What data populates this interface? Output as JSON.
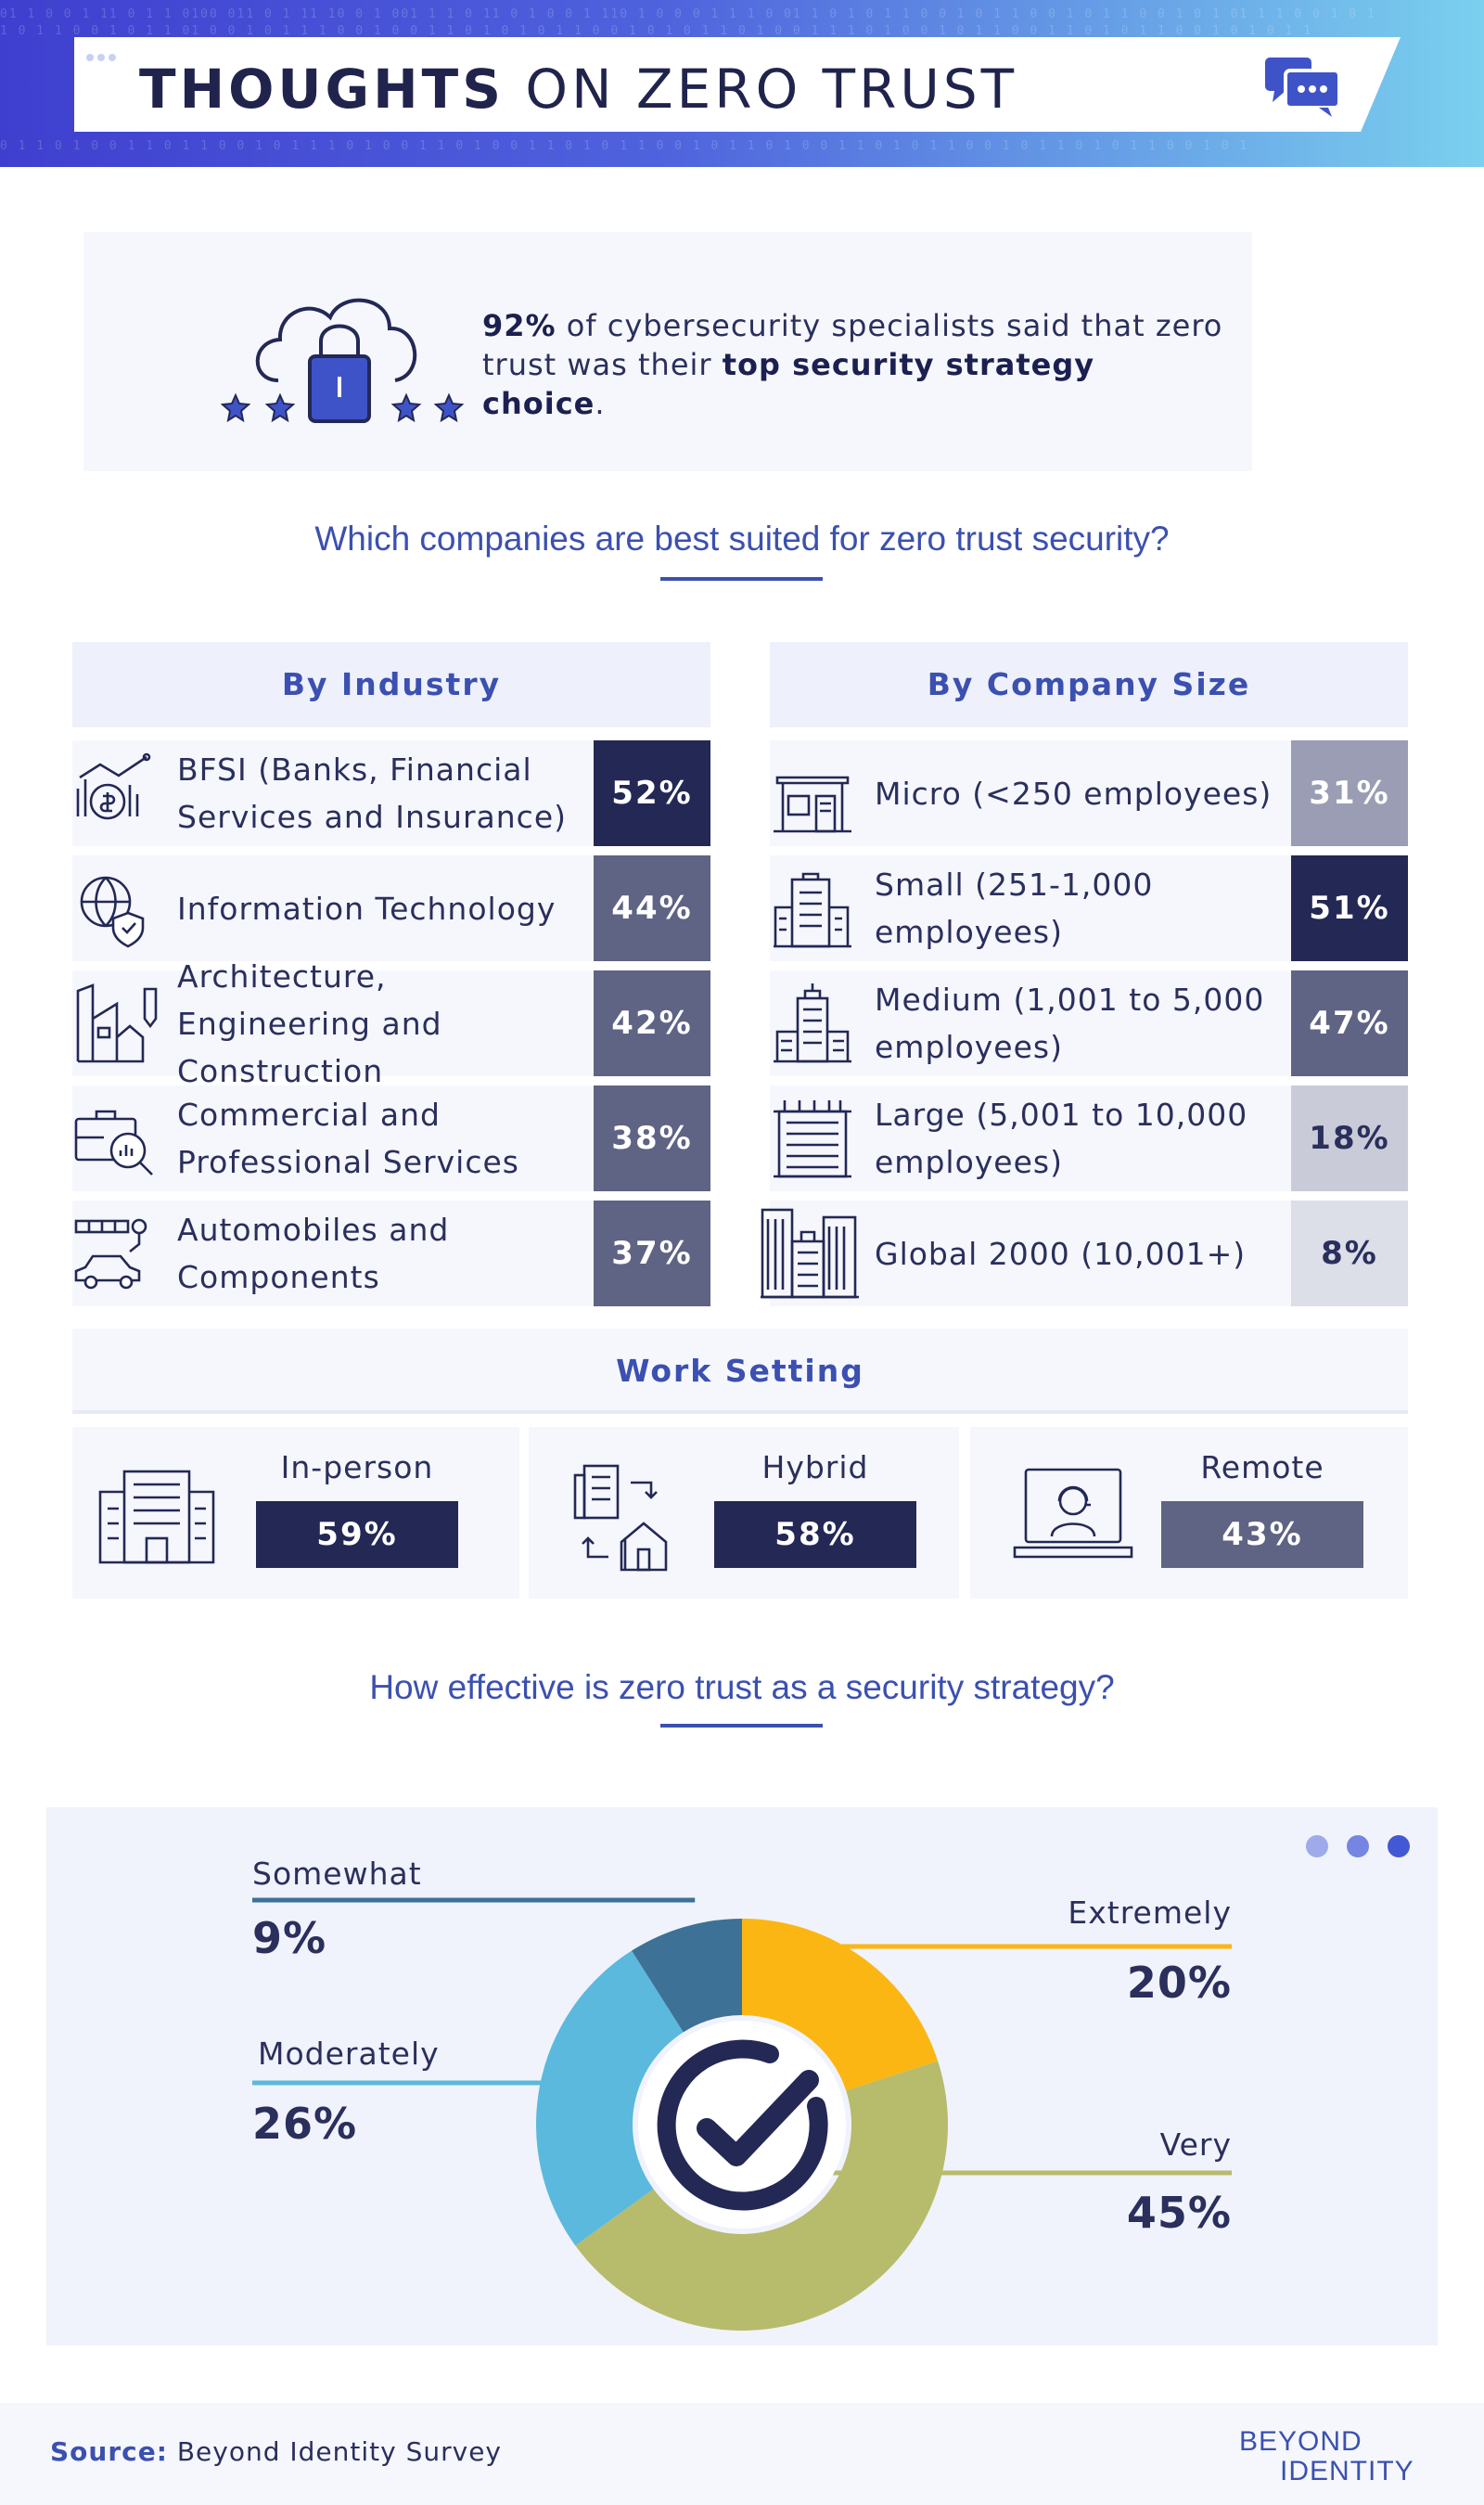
{
  "header": {
    "title_bold": "THOUGHTS",
    "title_rest": " ON ZERO TRUST",
    "chat_icon": "chat-bubbles-icon"
  },
  "stat": {
    "pct": "92%",
    "text_a": " of cybersecurity specialists said that zero trust was their ",
    "text_b": "top security strategy choice",
    "text_c": ".",
    "icon": "cloud-lock-stars-icon"
  },
  "q1": "Which companies are best suited for zero trust security?",
  "q2": "How effective is zero trust as a security strategy?",
  "colors": {
    "navy": "#232855",
    "slate": "#5f6384",
    "grey": "#9a9db3",
    "light": "#c9cbd9",
    "pale": "#dcdee8",
    "yellow": "#fbb614",
    "olive": "#b7bb6c",
    "sky": "#5bb9dd",
    "steel": "#3d7196"
  },
  "chart_data": [
    {
      "type": "bar",
      "title": "By Industry",
      "categories": [
        "BFSI (Banks, Financial Services and Insurance)",
        "Information Technology",
        "Architecture, Engineering and Construction",
        "Commercial and Professional Services",
        "Automobiles and Components"
      ],
      "values": [
        52,
        44,
        42,
        38,
        37
      ],
      "labels": [
        "52%",
        "44%",
        "42%",
        "38%",
        "37%"
      ],
      "colors": [
        "#232855",
        "#5f6384",
        "#5f6384",
        "#5f6384",
        "#5f6384"
      ],
      "icons": [
        "finance-chart-icon",
        "globe-shield-icon",
        "building-blueprint-icon",
        "briefcase-analytics-icon",
        "car-assembly-icon"
      ]
    },
    {
      "type": "bar",
      "title": "By Company Size",
      "categories": [
        "Micro (<250 employees)",
        "Small (251-1,000 employees)",
        "Medium (1,001 to 5,000 employees)",
        "Large (5,001 to 10,000 employees)",
        "Global 2000 (10,001+)"
      ],
      "values": [
        31,
        51,
        47,
        18,
        8
      ],
      "labels": [
        "31%",
        "51%",
        "47%",
        "18%",
        "8%"
      ],
      "colors": [
        "#9a9db3",
        "#232855",
        "#5f6384",
        "#c9cbd9",
        "#dcdee8"
      ],
      "label_colors": [
        "#ffffff",
        "#ffffff",
        "#ffffff",
        "#2a2f5c",
        "#2a2f5c"
      ],
      "icons": [
        "storefront-icon",
        "small-office-icon",
        "office-tower-icon",
        "large-building-icon",
        "skyline-icon"
      ]
    },
    {
      "type": "bar",
      "title": "Work Setting",
      "categories": [
        "In-person",
        "Hybrid",
        "Remote"
      ],
      "values": [
        59,
        58,
        43
      ],
      "labels": [
        "59%",
        "58%",
        "43%"
      ],
      "colors": [
        "#232855",
        "#232855",
        "#5f6384"
      ],
      "icons": [
        "office-building-icon",
        "office-home-switch-icon",
        "laptop-user-icon"
      ]
    },
    {
      "type": "pie",
      "title": "How effective is zero trust as a security strategy?",
      "categories": [
        "Extremely",
        "Very",
        "Moderately",
        "Somewhat"
      ],
      "values": [
        20,
        45,
        26,
        9
      ],
      "labels": [
        "20%",
        "45%",
        "26%",
        "9%"
      ],
      "colors": [
        "#fbb614",
        "#b7bb6c",
        "#5bb9dd",
        "#3d7196"
      ],
      "center_icon": "checkmark-icon"
    }
  ],
  "footer": {
    "source_label": "Source:",
    "source_text": " Beyond Identity Survey",
    "logo_line1": "BEYOND",
    "logo_line2": "IDENTITY"
  }
}
